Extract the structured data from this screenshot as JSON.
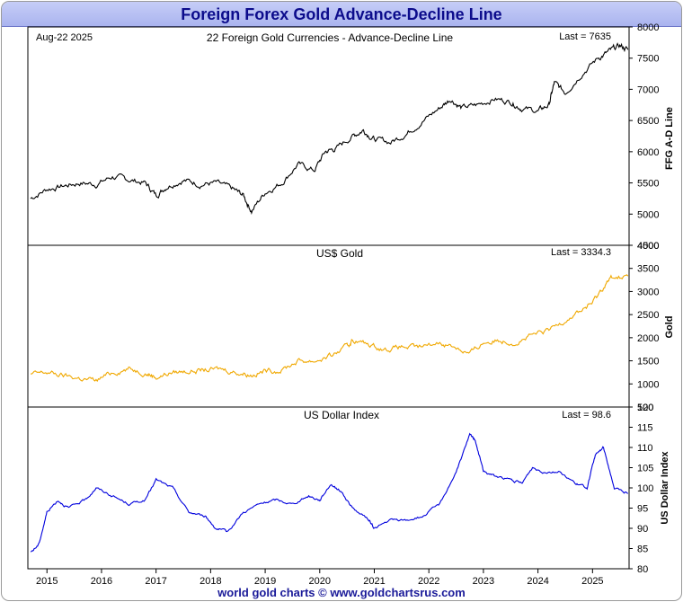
{
  "page_title": "Foreign Forex Gold Advance-Decline Line",
  "footer": "world gold charts © www.goldchartsrus.com",
  "date_label": "Aug-22  2025",
  "colors": {
    "ad_line": "#000000",
    "gold": "#f0a800",
    "usd": "#0000dd"
  },
  "chart_data": [
    {
      "type": "line",
      "title": "22 Foreign Gold Currencies - Advance-Decline Line",
      "ylabel": "FFG A-D Line",
      "last_label": "Last = 7635",
      "ylim": [
        4500,
        8000
      ],
      "yticks": [
        4500,
        5000,
        5500,
        6000,
        6500,
        7000,
        7500,
        8000
      ],
      "series": [
        {
          "name": "FFG A-D Line",
          "color": "#000000",
          "x": [
            2014.7,
            2015.0,
            2015.3,
            2015.6,
            2015.9,
            2016.2,
            2016.5,
            2016.8,
            2017.0,
            2017.2,
            2017.5,
            2017.8,
            2018.1,
            2018.4,
            2018.6,
            2018.75,
            2019.0,
            2019.3,
            2019.6,
            2019.9,
            2020.1,
            2020.3,
            2020.6,
            2020.8,
            2021.0,
            2021.3,
            2021.6,
            2021.9,
            2022.2,
            2022.4,
            2022.6,
            2022.9,
            2023.2,
            2023.5,
            2023.7,
            2024.0,
            2024.2,
            2024.3,
            2024.5,
            2024.8,
            2025.1,
            2025.3,
            2025.5,
            2025.65
          ],
          "y": [
            5250,
            5400,
            5450,
            5500,
            5480,
            5600,
            5550,
            5500,
            5300,
            5450,
            5550,
            5480,
            5500,
            5400,
            5300,
            5050,
            5350,
            5500,
            5800,
            5700,
            6000,
            6050,
            6250,
            6350,
            6200,
            6150,
            6300,
            6500,
            6700,
            6850,
            6700,
            6750,
            6850,
            6800,
            6700,
            6650,
            6750,
            7100,
            6950,
            7250,
            7500,
            7600,
            7700,
            7635
          ]
        }
      ]
    },
    {
      "type": "line",
      "title": "US$ Gold",
      "ylabel": "Gold",
      "last_label": "Last = 3334.3",
      "ylim": [
        500,
        4000
      ],
      "yticks": [
        500,
        1000,
        1500,
        2000,
        2500,
        3000,
        3500,
        4000
      ],
      "series": [
        {
          "name": "Gold",
          "color": "#f0a800",
          "x": [
            2014.7,
            2015.0,
            2015.3,
            2015.6,
            2015.9,
            2016.2,
            2016.5,
            2016.8,
            2017.0,
            2017.3,
            2017.6,
            2017.9,
            2018.2,
            2018.5,
            2018.75,
            2019.0,
            2019.3,
            2019.6,
            2019.9,
            2020.2,
            2020.5,
            2020.6,
            2020.9,
            2021.2,
            2021.5,
            2021.8,
            2022.2,
            2022.5,
            2022.75,
            2023.0,
            2023.3,
            2023.6,
            2023.9,
            2024.2,
            2024.5,
            2024.8,
            2025.0,
            2025.2,
            2025.35,
            2025.65
          ],
          "y": [
            1200,
            1250,
            1180,
            1120,
            1070,
            1250,
            1330,
            1250,
            1150,
            1250,
            1280,
            1300,
            1320,
            1250,
            1200,
            1280,
            1300,
            1500,
            1500,
            1600,
            1800,
            1950,
            1850,
            1750,
            1800,
            1780,
            1900,
            1800,
            1650,
            1900,
            1950,
            1900,
            2050,
            2150,
            2400,
            2600,
            2750,
            3100,
            3300,
            3334
          ]
        }
      ]
    },
    {
      "type": "line",
      "title": "US Dollar Index",
      "ylabel": "US Dollar Index",
      "last_label": "Last = 98.6",
      "ylim": [
        80,
        120
      ],
      "yticks": [
        80,
        85,
        90,
        95,
        100,
        105,
        110,
        115,
        120
      ],
      "series": [
        {
          "name": "US Dollar Index",
          "color": "#0000dd",
          "x": [
            2014.7,
            2014.85,
            2015.0,
            2015.2,
            2015.4,
            2015.7,
            2015.9,
            2016.2,
            2016.5,
            2016.8,
            2017.0,
            2017.3,
            2017.6,
            2017.9,
            2018.1,
            2018.3,
            2018.6,
            2018.9,
            2019.2,
            2019.5,
            2019.8,
            2020.0,
            2020.2,
            2020.4,
            2020.6,
            2020.9,
            2021.0,
            2021.3,
            2021.6,
            2021.9,
            2022.2,
            2022.5,
            2022.75,
            2022.85,
            2023.0,
            2023.2,
            2023.5,
            2023.7,
            2023.9,
            2024.1,
            2024.4,
            2024.7,
            2024.9,
            2025.05,
            2025.2,
            2025.4,
            2025.65
          ],
          "y": [
            84,
            86,
            94,
            97,
            95,
            97,
            100,
            98,
            96,
            97,
            102,
            100,
            94,
            93,
            90,
            89,
            94,
            96,
            97,
            96,
            98,
            97,
            101,
            99,
            95,
            92,
            90,
            92,
            92,
            93,
            96,
            104,
            113,
            112,
            104,
            103,
            102,
            101,
            105,
            104,
            104,
            101,
            100,
            108,
            110,
            100,
            98.6
          ]
        }
      ]
    }
  ],
  "x_axis": {
    "labels": [
      "2015",
      "2016",
      "2017",
      "2018",
      "2019",
      "2020",
      "2021",
      "2022",
      "2023",
      "2024",
      "2025"
    ],
    "values": [
      2015,
      2016,
      2017,
      2018,
      2019,
      2020,
      2021,
      2022,
      2023,
      2024,
      2025
    ],
    "range": [
      2014.65,
      2025.67
    ]
  }
}
